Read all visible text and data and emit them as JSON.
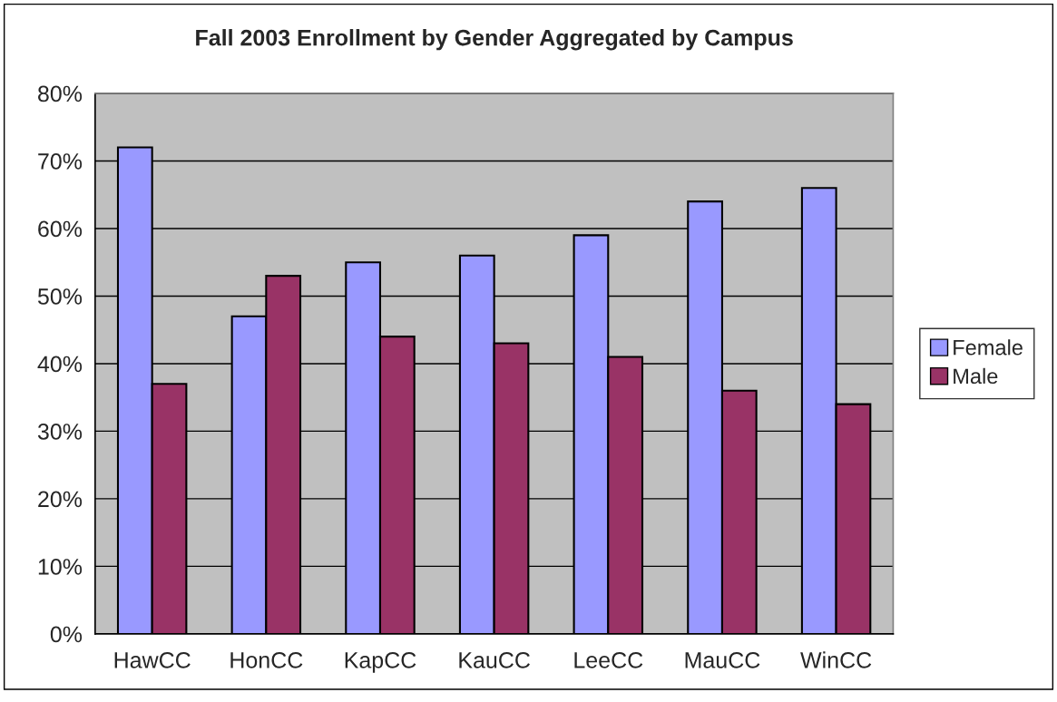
{
  "chart_data": {
    "type": "bar",
    "title": "Fall 2003 Enrollment by Gender Aggregated by Campus",
    "categories": [
      "HawCC",
      "HonCC",
      "KapCC",
      "KauCC",
      "LeeCC",
      "MauCC",
      "WinCC"
    ],
    "series": [
      {
        "name": "Female",
        "color": "#9999ff",
        "values": [
          72,
          47,
          55,
          56,
          59,
          64,
          66
        ]
      },
      {
        "name": "Male",
        "color": "#993366",
        "values": [
          37,
          53,
          44,
          43,
          41,
          36,
          34
        ]
      }
    ],
    "ylim": [
      0,
      80
    ],
    "yticks": [
      {
        "value": 0,
        "label": "0%"
      },
      {
        "value": 10,
        "label": "10%"
      },
      {
        "value": 20,
        "label": "20%"
      },
      {
        "value": 30,
        "label": "30%"
      },
      {
        "value": 40,
        "label": "40%"
      },
      {
        "value": 50,
        "label": "50%"
      },
      {
        "value": 60,
        "label": "60%"
      },
      {
        "value": 70,
        "label": "70%"
      },
      {
        "value": 80,
        "label": "80%"
      }
    ],
    "grid": "y",
    "legend": "right"
  }
}
